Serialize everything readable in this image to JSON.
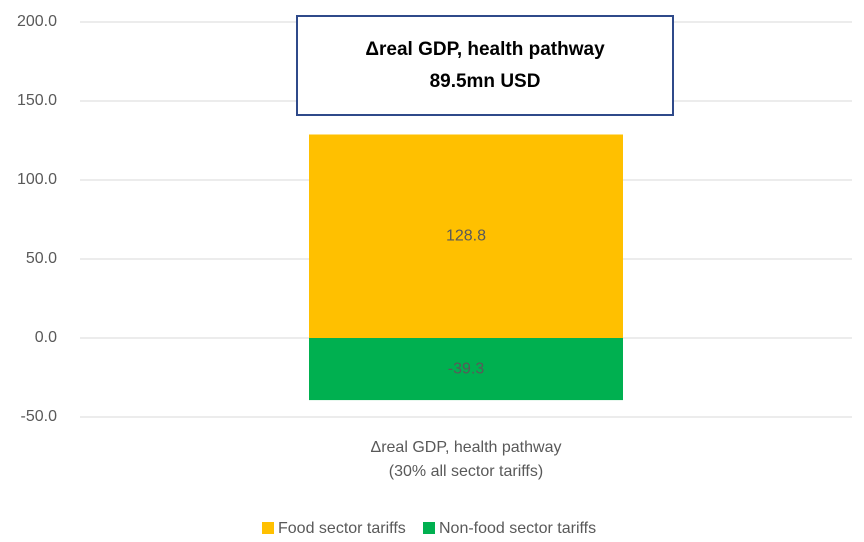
{
  "chart_data": {
    "type": "bar",
    "stacked": true,
    "annotation": "Δreal GDP, health pathway\n89.5mn USD",
    "categories": [
      "Δreal GDP, health pathway\n(30% all sector tariffs)"
    ],
    "series": [
      {
        "name": "Food sector tariffs",
        "color": "#ffc000",
        "values": [
          128.8
        ]
      },
      {
        "name": "Non-food sector tariffs",
        "color": "#00b050",
        "values": [
          -39.3
        ]
      }
    ],
    "ylim": [
      -50,
      200
    ],
    "yticks": [
      {
        "value": -50,
        "label": "-50.0"
      },
      {
        "value": 0,
        "label": "0.0"
      },
      {
        "value": 50,
        "label": "50.0"
      },
      {
        "value": 100,
        "label": "100.0"
      },
      {
        "value": 150,
        "label": "150.0"
      },
      {
        "value": 200,
        "label": "200.0"
      }
    ],
    "grid": true,
    "legend": "bottom"
  }
}
